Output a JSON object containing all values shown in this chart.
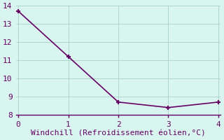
{
  "x": [
    0,
    1,
    2,
    3,
    4
  ],
  "y": [
    13.7,
    11.2,
    8.7,
    8.4,
    8.7
  ],
  "line_color": "#660066",
  "marker": "+",
  "marker_size": 5,
  "marker_linewidth": 1.5,
  "xlabel": "Windchill (Refroidissement éolien,°C)",
  "background_color": "#d8f5f0",
  "grid_color": "#aed6cc",
  "ylim": [
    8,
    14
  ],
  "xlim": [
    -0.05,
    4.05
  ],
  "yticks": [
    8,
    9,
    10,
    11,
    12,
    13,
    14
  ],
  "xticks": [
    0,
    1,
    2,
    3,
    4
  ],
  "tick_color": "#660066",
  "label_color": "#660066",
  "label_fontsize": 8,
  "tick_fontsize": 8,
  "line_width": 1.2,
  "spine_color": "#660066"
}
